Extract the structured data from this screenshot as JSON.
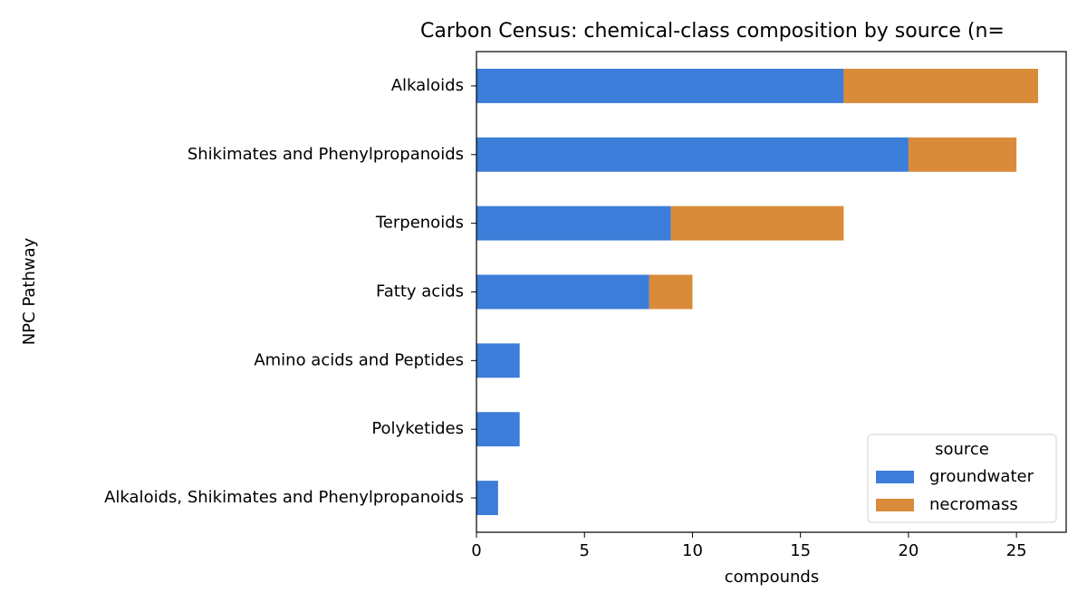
{
  "chart_data": {
    "type": "barh-stacked",
    "title": "Carbon Census: chemical-class composition by source (n=",
    "xlabel": "compounds",
    "ylabel": "NPC Pathway",
    "categories": [
      "Alkaloids",
      "Shikimates and Phenylpropanoids",
      "Terpenoids",
      "Fatty acids",
      "Amino acids and Peptides",
      "Polyketides",
      "Alkaloids, Shikimates and Phenylpropanoids"
    ],
    "series": [
      {
        "name": "groundwater",
        "color": "#3b7dd8",
        "values": [
          17,
          20,
          9,
          8,
          2,
          2,
          1
        ]
      },
      {
        "name": "necromass",
        "color": "#d98b3a",
        "values": [
          9,
          5,
          8,
          2,
          0,
          0,
          0
        ]
      }
    ],
    "xlim": [
      0,
      27.3
    ],
    "xticks": [
      0,
      5,
      10,
      15,
      20,
      25
    ],
    "legend_title": "source",
    "legend": "lower right"
  }
}
